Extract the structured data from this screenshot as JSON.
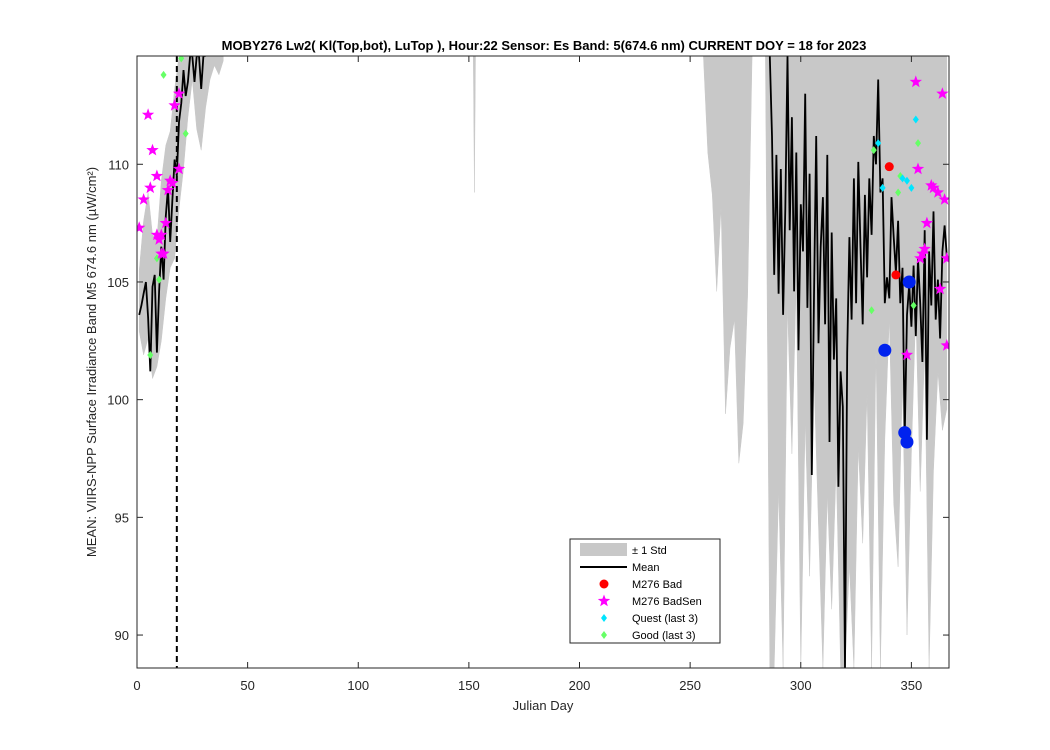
{
  "chart_data": {
    "type": "line",
    "title": "MOBY276   Lw2( Kl(Top,bot), LuTop ),   Hour:22 Sensor: Es Band: 5(674.6 nm)   CURRENT DOY = 18 for 2023",
    "xlabel": "Julian Day",
    "ylabel": "MEAN: VIIRS-NPP Surface Irradiance Band M5 674.6 nm (µW/cm²)",
    "xlim": [
      0,
      367
    ],
    "ylim": [
      88.6,
      114.6
    ],
    "xticks": [
      0,
      50,
      100,
      150,
      200,
      250,
      300,
      350
    ],
    "yticks": [
      90,
      95,
      100,
      105,
      110
    ],
    "grid": false,
    "legend_position": "bottom-center",
    "current_doy": 18,
    "colors": {
      "mean_line": "#000000",
      "std_band": "#c8c8c8",
      "bad": "#ff0000",
      "badsen": "#ff00ff",
      "quest": "#00e5ff",
      "good": "#66ff66",
      "extra": "#0022ee"
    },
    "legend": [
      {
        "label": "± 1 Std",
        "kind": "patch"
      },
      {
        "label": "Mean",
        "kind": "line"
      },
      {
        "label": "M276 Bad",
        "kind": "bad"
      },
      {
        "label": "M276 BadSen",
        "kind": "badsen"
      },
      {
        "label": "Quest (last 3)",
        "kind": "quest"
      },
      {
        "label": "Good (last 3)",
        "kind": "good"
      }
    ],
    "series": [
      {
        "name": "Mean",
        "segments": [
          {
            "x": [
              1,
              2,
              3,
              4,
              5,
              6,
              7,
              8,
              9,
              10,
              11,
              12,
              13,
              14,
              15,
              16,
              17,
              18,
              19,
              20,
              21,
              22,
              23,
              24,
              25,
              26,
              27,
              28,
              29,
              30,
              31
            ],
            "y": [
              103.6,
              104.0,
              104.5,
              105.0,
              103.5,
              101.2,
              104.8,
              105.3,
              102.0,
              104.6,
              106.5,
              105.1,
              107.8,
              109.0,
              106.7,
              108.5,
              110.2,
              109.5,
              111.8,
              112.6,
              114.0,
              112.9,
              113.5,
              114.6,
              114.6,
              113.5,
              114.6,
              114.6,
              113.2,
              114.6,
              114.6
            ]
          },
          {
            "x": [
              286,
              287,
              288,
              289,
              290,
              291,
              292,
              293,
              294,
              295,
              296,
              297,
              298,
              299,
              300,
              301,
              302,
              303,
              304,
              305,
              306,
              307,
              308,
              309,
              310,
              311,
              312,
              313,
              314,
              315,
              316,
              317,
              318,
              319,
              320,
              321,
              322,
              323,
              324,
              325,
              326,
              327,
              328,
              329,
              330,
              331,
              332,
              333,
              334,
              335,
              336,
              337,
              338,
              339,
              340,
              341,
              342,
              343,
              344,
              345,
              346,
              347,
              348,
              349,
              350,
              351,
              352,
              353,
              354,
              355,
              356,
              357,
              358,
              359,
              360,
              361,
              362,
              363,
              364,
              365,
              366
            ],
            "y": [
              114.6,
              111.2,
              105.3,
              110.4,
              104.5,
              109.8,
              103.6,
              108.1,
              114.6,
              107.2,
              112.0,
              104.6,
              110.5,
              102.1,
              108.3,
              106.3,
              113.0,
              103.9,
              109.6,
              96.8,
              104.4,
              111.2,
              102.4,
              106.5,
              108.6,
              103.2,
              110.4,
              98.2,
              107.1,
              101.7,
              104.3,
              96.3,
              101.2,
              99.7,
              88.6,
              102.0,
              106.9,
              103.4,
              109.4,
              104.1,
              110.1,
              106.5,
              103.2,
              108.7,
              105.2,
              109.4,
              107.0,
              111.2,
              110.0,
              113.6,
              108.8,
              109.4,
              104.1,
              105.2,
              104.3,
              108.6,
              106.9,
              105.4,
              107.6,
              104.1,
              105.6,
              98.4,
              103.6,
              104.9,
              103.1,
              105.7,
              102.7,
              106.0,
              104.1,
              101.6,
              107.2,
              98.3,
              106.3,
              104.0,
              108.0,
              103.4,
              105.1,
              102.6,
              106.3,
              107.4,
              106.1
            ]
          }
        ]
      },
      {
        "name": "± 1 Std",
        "segments": [
          {
            "x": [
              1,
              3,
              5,
              7,
              9,
              11,
              13,
              15,
              17,
              19,
              21,
              23,
              25,
              27,
              29,
              31,
              33,
              35,
              37,
              39
            ],
            "upper": [
              105.5,
              107.6,
              108.8,
              107.0,
              106.8,
              109.3,
              110.8,
              111.4,
              113.2,
              114.6,
              114.6,
              114.6,
              114.6,
              114.6,
              114.6,
              114.6,
              114.6,
              114.6,
              114.6,
              114.6
            ],
            "lower": [
              102.9,
              101.9,
              102.6,
              100.9,
              101.4,
              102.5,
              104.3,
              105.6,
              106.0,
              108.1,
              109.8,
              112.0,
              113.6,
              111.5,
              110.6,
              112.4,
              113.6,
              114.2,
              113.8,
              114.4
            ]
          },
          {
            "x": [
              256,
              258,
              260,
              262,
              264,
              266,
              268,
              270,
              272,
              274,
              276,
              278,
              280,
              282,
              284,
              286,
              288,
              290,
              292,
              294,
              296,
              298,
              300,
              302,
              304,
              306,
              308,
              310,
              312,
              314,
              316,
              318,
              320,
              322,
              324,
              326,
              328,
              330,
              332,
              334,
              336,
              338,
              340,
              342,
              344,
              346,
              348,
              350,
              352,
              354,
              356,
              358,
              360,
              362,
              364,
              366
            ],
            "upper": [
              114.6,
              114.6,
              114.6,
              114.6,
              114.6,
              114.6,
              114.6,
              114.6,
              114.6,
              114.6,
              114.6,
              114.6,
              114.6,
              114.6,
              114.6,
              114.6,
              114.6,
              114.6,
              114.6,
              114.6,
              114.6,
              114.6,
              114.6,
              114.6,
              114.6,
              114.6,
              114.6,
              114.6,
              114.6,
              114.6,
              114.6,
              114.6,
              114.6,
              114.6,
              114.6,
              114.6,
              114.6,
              114.6,
              114.6,
              114.6,
              114.6,
              114.6,
              114.6,
              114.6,
              114.6,
              114.6,
              114.6,
              114.6,
              114.6,
              114.6,
              114.6,
              114.6,
              114.6,
              114.6,
              114.6,
              114.6
            ],
            "lower": [
              114.6,
              110.5,
              108.7,
              104.6,
              108.2,
              99.4,
              102.2,
              103.4,
              97.3,
              99.0,
              104.5,
              114.6,
              114.6,
              114.6,
              114.6,
              88.6,
              88.6,
              96.2,
              88.6,
              104.0,
              97.7,
              105.1,
              88.6,
              99.1,
              92.5,
              101.0,
              94.6,
              88.6,
              96.0,
              91.1,
              97.2,
              88.6,
              88.6,
              93.0,
              88.6,
              98.0,
              93.9,
              100.3,
              88.6,
              102.2,
              88.6,
              98.3,
              103.4,
              95.6,
              92.9,
              100.9,
              90.0,
              97.7,
              103.8,
              96.1,
              102.2,
              88.6,
              97.0,
              101.2,
              98.7,
              99.6
            ]
          },
          {
            "x": [
              152,
              152.5,
              153
            ],
            "upper": [
              114.6,
              114.6,
              114.6
            ],
            "lower": [
              114.6,
              108.8,
              114.6
            ]
          }
        ]
      },
      {
        "name": "M276 Bad",
        "x": [
          340,
          343
        ],
        "y": [
          109.9,
          105.3
        ]
      },
      {
        "name": "M276 BadSen",
        "x": [
          1,
          3,
          5,
          6,
          7,
          9,
          9,
          10,
          11,
          11,
          12,
          13,
          14,
          15,
          16,
          17,
          19,
          19,
          352,
          353,
          354,
          355,
          356,
          357,
          359,
          360,
          362,
          363,
          364,
          365,
          366,
          366,
          348
        ],
        "y": [
          107.3,
          108.5,
          112.1,
          109.0,
          110.6,
          107.0,
          109.5,
          106.8,
          106.2,
          107.0,
          106.2,
          107.5,
          108.9,
          109.3,
          109.2,
          112.5,
          113.0,
          109.8,
          113.5,
          109.8,
          106.0,
          106.2,
          106.4,
          107.5,
          109.1,
          109.0,
          108.8,
          104.7,
          113.0,
          108.5,
          102.3,
          106.0,
          101.9
        ]
      },
      {
        "name": "Quest (last 3)",
        "x": [
          335,
          337,
          346,
          348,
          350,
          352
        ],
        "y": [
          110.9,
          109.0,
          109.4,
          109.3,
          109.0,
          111.9
        ]
      },
      {
        "name": "Good (last 3)",
        "x": [
          6,
          9,
          10,
          12,
          20,
          22,
          332,
          333,
          344,
          345,
          351,
          353
        ],
        "y": [
          101.9,
          106.0,
          105.1,
          113.8,
          114.5,
          111.3,
          103.8,
          110.6,
          108.8,
          109.5,
          104.0,
          110.9
        ]
      },
      {
        "x": [
          338,
          347,
          348,
          349
        ],
        "y": [
          102.1,
          98.6,
          98.2,
          105.0
        ]
      }
    ]
  }
}
